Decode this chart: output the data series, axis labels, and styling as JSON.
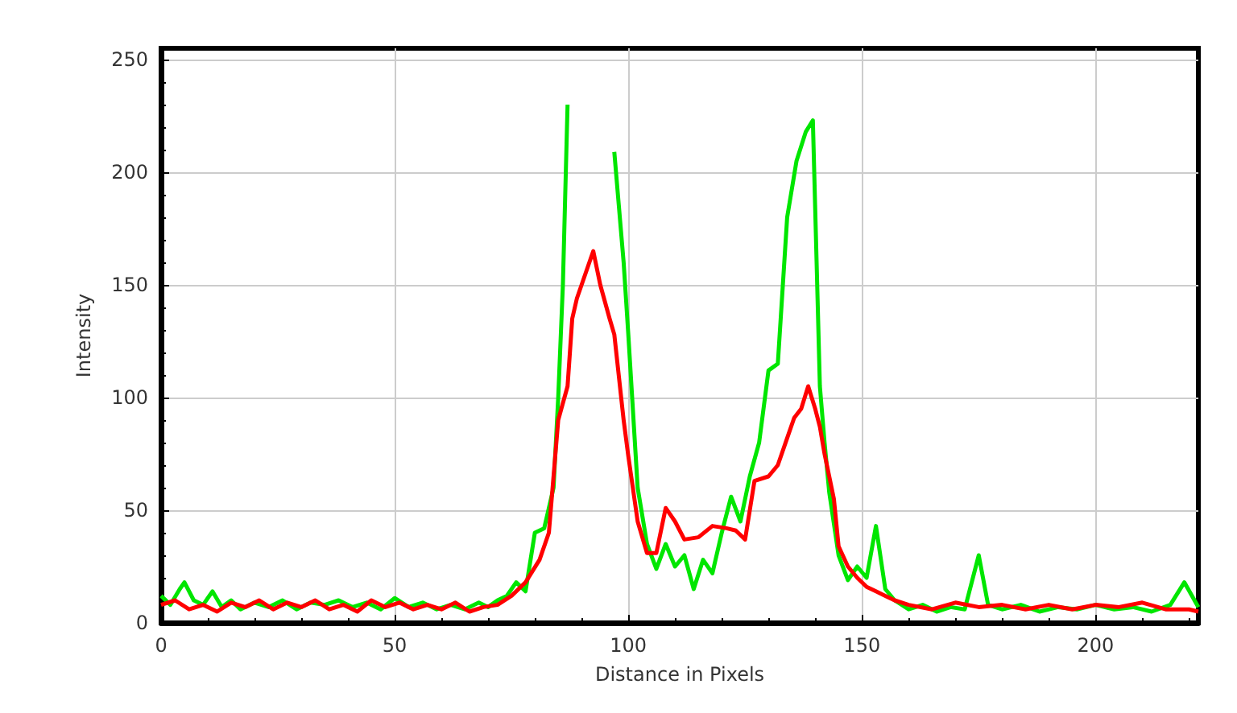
{
  "chart_data": {
    "type": "line",
    "xlabel": "Distance in Pixels",
    "ylabel": "Intensity",
    "xlim": [
      0,
      222
    ],
    "ylim": [
      0,
      255
    ],
    "xticks": [
      0,
      50,
      100,
      150,
      200
    ],
    "yticks": [
      0,
      50,
      100,
      150,
      200,
      250
    ],
    "grid": true,
    "marker": "none",
    "line_style": "solid",
    "series": [
      {
        "color": "#00e600",
        "x": [
          0,
          2,
          4,
          5,
          7,
          9,
          11,
          13,
          15,
          17,
          20,
          23,
          26,
          29,
          32,
          35,
          38,
          41,
          44,
          47,
          50,
          53,
          56,
          59,
          62,
          65,
          68,
          70,
          72,
          74,
          76,
          78,
          80,
          82,
          84,
          85,
          86,
          87,
          88,
          95,
          97,
          99,
          100,
          102,
          104,
          106,
          108,
          110,
          112,
          114,
          116,
          118,
          120,
          122,
          124,
          126,
          128,
          130,
          132,
          134,
          136,
          138,
          139.5,
          141,
          142,
          143,
          145,
          147,
          149,
          151,
          153,
          155,
          157,
          160,
          163,
          166,
          169,
          172,
          175,
          177,
          180,
          184,
          188,
          192,
          196,
          200,
          204,
          208,
          212,
          216,
          219,
          222
        ],
        "values": [
          12,
          8,
          15,
          18,
          10,
          8,
          14,
          7,
          10,
          6,
          9,
          7,
          10,
          6,
          9,
          8,
          10,
          7,
          9,
          6,
          11,
          7,
          9,
          6,
          8,
          6,
          9,
          7,
          10,
          12,
          18,
          14,
          40,
          42,
          60,
          100,
          150,
          230,
          null,
          null,
          209,
          160,
          128,
          60,
          35,
          24,
          35,
          25,
          30,
          15,
          28,
          22,
          40,
          56,
          45,
          65,
          80,
          112,
          115,
          180,
          205,
          218,
          223,
          105,
          80,
          58,
          30,
          19,
          25,
          20,
          43,
          15,
          10,
          6,
          8,
          5,
          7,
          6,
          30,
          8,
          6,
          8,
          5,
          7,
          6,
          8,
          6,
          7,
          5,
          8,
          18,
          7
        ]
      },
      {
        "color": "#ff0000",
        "x": [
          0,
          3,
          6,
          9,
          12,
          15,
          18,
          21,
          24,
          27,
          30,
          33,
          36,
          39,
          42,
          45,
          48,
          51,
          54,
          57,
          60,
          63,
          66,
          69,
          72,
          75,
          78,
          81,
          83,
          85,
          87,
          88,
          89,
          90,
          92.5,
          94,
          96,
          97,
          99,
          100,
          102,
          104,
          106,
          108,
          110,
          112,
          115,
          118,
          121,
          123,
          125,
          127,
          130,
          132,
          134,
          135.5,
          137,
          138.5,
          140,
          141,
          142,
          143,
          144,
          145,
          147,
          149,
          151,
          153,
          155,
          157,
          160,
          165,
          170,
          175,
          180,
          185,
          190,
          195,
          200,
          205,
          210,
          215,
          220,
          222
        ],
        "values": [
          8,
          10,
          6,
          8,
          5,
          9,
          7,
          10,
          6,
          9,
          7,
          10,
          6,
          8,
          5,
          10,
          7,
          9,
          6,
          8,
          6,
          9,
          5,
          7,
          8,
          12,
          18,
          28,
          40,
          90,
          105,
          135,
          144,
          150,
          165,
          150,
          135,
          128,
          90,
          74,
          45,
          31,
          31,
          51,
          45,
          37,
          38,
          43,
          42,
          41,
          37,
          63,
          65,
          70,
          82,
          91,
          95,
          105,
          95,
          87,
          75,
          65,
          55,
          34,
          25,
          20,
          16,
          14,
          12,
          10,
          8,
          6,
          9,
          7,
          8,
          6,
          8,
          6,
          8,
          7,
          9,
          6,
          6,
          5
        ]
      }
    ]
  }
}
